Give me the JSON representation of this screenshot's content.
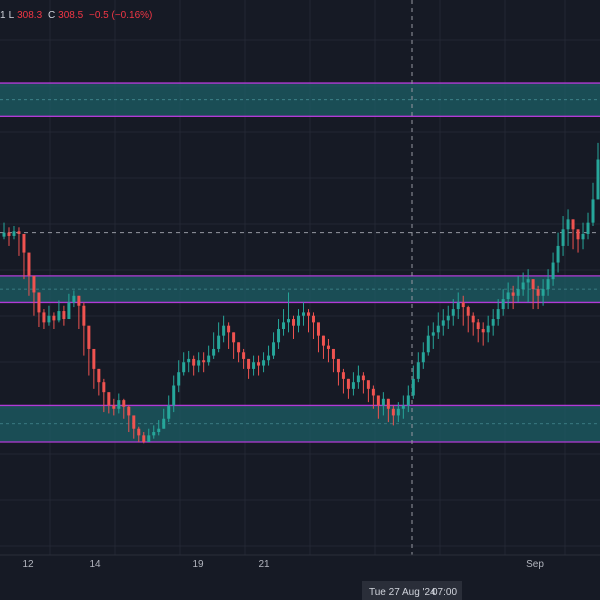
{
  "legend": {
    "open_tail": "1",
    "low_label": "L",
    "low_value": "308.3",
    "close_label": "C",
    "close_value": "308.5",
    "change": "−0.5 (−0.16%)"
  },
  "crosshair": {
    "time_label": "Tue 27 Aug '24",
    "time_value": "07:00"
  },
  "colors": {
    "background": "#161a25",
    "up": "#26a69a",
    "down": "#ef5350",
    "zone_fill": "#1c5f66",
    "zone_border": "#b23ad6",
    "grid": "#232734"
  },
  "chart_data": {
    "type": "candlestick",
    "x_ticks": [
      "12",
      "14",
      "19",
      "21",
      "Sep"
    ],
    "zones": [
      {
        "top": 353.5,
        "bottom": 348.5
      },
      {
        "top": 324.5,
        "bottom": 320.5
      },
      {
        "top": 305.0,
        "bottom": 299.5
      }
    ],
    "crosshair_price": 331.0,
    "y_range": [
      282.5,
      366.0
    ],
    "series_close": [
      331.0,
      330.5,
      331.2,
      330.8,
      328.0,
      324.5,
      322.0,
      319.0,
      317.5,
      318.5,
      317.8,
      319.2,
      318.0,
      320.5,
      321.5,
      320.0,
      317.0,
      313.5,
      310.5,
      308.5,
      307.0,
      305.0,
      304.5,
      305.8,
      304.8,
      303.5,
      301.5,
      300.5,
      299.5,
      300.5,
      301.0,
      301.5,
      303.0,
      305.0,
      308.0,
      310.0,
      311.5,
      312.0,
      311.0,
      311.8,
      311.5,
      312.5,
      313.5,
      315.5,
      317.0,
      316.0,
      314.5,
      313.0,
      312.0,
      310.5,
      311.5,
      311.0,
      311.8,
      312.5,
      314.5,
      316.5,
      317.5,
      318.0,
      317.0,
      318.5,
      319.0,
      318.5,
      317.5,
      315.5,
      314.0,
      313.5,
      312.0,
      310.0,
      309.0,
      307.5,
      308.5,
      309.5,
      308.8,
      307.5,
      306.5,
      305.0,
      306.0,
      304.5,
      303.5,
      304.5,
      305.0,
      306.5,
      309.0,
      311.5,
      313.0,
      315.5,
      316.0,
      317.0,
      317.8,
      318.5,
      319.5,
      320.5,
      319.8,
      318.5,
      317.5,
      316.5,
      316.0,
      317.0,
      318.0,
      319.5,
      321.0,
      322.0,
      321.5,
      322.5,
      323.5,
      324.0,
      322.5,
      321.5,
      322.5,
      324.0,
      326.5,
      329.0,
      331.5,
      333.0,
      331.5,
      330.0,
      330.8,
      332.5,
      336.0,
      342.0
    ],
    "series_high": [
      332.5,
      331.8,
      332.0,
      331.8,
      330.5,
      326.0,
      324.5,
      321.5,
      319.5,
      320.0,
      319.0,
      320.8,
      320.0,
      321.8,
      322.3,
      321.5,
      320.5,
      316.0,
      312.0,
      310.5,
      309.0,
      306.5,
      306.0,
      306.8,
      306.0,
      305.0,
      303.0,
      301.8,
      301.0,
      301.5,
      302.0,
      302.8,
      304.5,
      306.5,
      309.5,
      311.8,
      313.0,
      313.2,
      312.5,
      313.0,
      313.0,
      314.0,
      316.0,
      317.5,
      318.5,
      317.5,
      316.0,
      314.5,
      313.5,
      312.0,
      312.5,
      312.5,
      313.0,
      314.0,
      316.0,
      318.0,
      319.5,
      322.0,
      318.5,
      319.5,
      320.5,
      319.5,
      319.0,
      317.0,
      315.5,
      315.0,
      313.5,
      311.5,
      310.5,
      309.0,
      310.0,
      311.0,
      310.0,
      308.5,
      308.0,
      306.5,
      307.0,
      306.0,
      305.0,
      305.5,
      306.5,
      308.0,
      311.0,
      313.0,
      314.5,
      317.0,
      317.5,
      319.0,
      319.5,
      320.0,
      321.0,
      322.0,
      321.5,
      320.0,
      319.0,
      318.0,
      317.5,
      318.5,
      319.5,
      321.0,
      322.5,
      323.5,
      323.0,
      324.5,
      325.0,
      325.5,
      324.0,
      323.0,
      324.0,
      325.5,
      328.0,
      331.0,
      333.5,
      334.5,
      333.0,
      331.5,
      332.5,
      334.0,
      338.5,
      344.5
    ],
    "series_low": [
      330.0,
      329.0,
      330.0,
      327.5,
      324.0,
      321.5,
      318.5,
      316.8,
      316.5,
      317.0,
      316.5,
      317.5,
      317.0,
      319.5,
      319.8,
      316.5,
      312.5,
      309.5,
      307.5,
      306.5,
      304.0,
      303.8,
      303.5,
      303.8,
      303.0,
      301.0,
      300.0,
      299.5,
      299.3,
      299.5,
      300.0,
      300.5,
      301.5,
      302.5,
      304.0,
      307.0,
      309.5,
      310.0,
      309.5,
      310.0,
      310.0,
      311.0,
      312.0,
      313.0,
      314.5,
      313.5,
      312.0,
      311.5,
      310.5,
      309.0,
      309.5,
      309.5,
      310.0,
      311.0,
      312.0,
      313.5,
      315.5,
      316.0,
      315.0,
      316.0,
      317.0,
      316.0,
      315.0,
      313.0,
      312.0,
      311.5,
      310.0,
      308.0,
      306.8,
      306.0,
      306.5,
      307.5,
      306.8,
      305.5,
      304.5,
      303.0,
      303.5,
      302.5,
      302.0,
      302.5,
      303.0,
      304.0,
      306.0,
      308.5,
      310.5,
      312.5,
      313.5,
      315.0,
      315.5,
      316.5,
      317.0,
      318.0,
      317.0,
      316.0,
      315.5,
      314.5,
      314.0,
      314.5,
      315.5,
      317.0,
      318.5,
      319.5,
      319.5,
      320.5,
      321.5,
      320.5,
      319.5,
      319.5,
      320.0,
      321.5,
      323.0,
      325.0,
      327.5,
      329.0,
      328.5,
      328.0,
      328.5,
      330.0,
      332.0,
      336.0
    ]
  }
}
